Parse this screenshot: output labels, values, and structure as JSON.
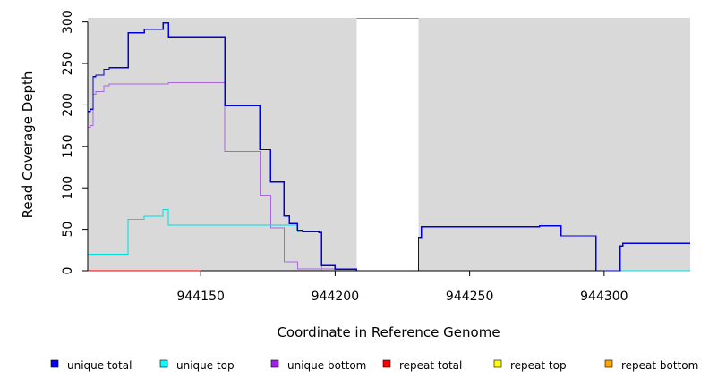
{
  "chart_data": {
    "type": "line",
    "xlabel": "Coordinate in Reference Genome",
    "ylabel": "Read Coverage Depth",
    "xlim": [
      944108,
      944332
    ],
    "ylim": [
      0,
      305
    ],
    "x_ticks": [
      944150,
      944200,
      944250,
      944300
    ],
    "x_tick_labels": [
      "944150",
      "944200",
      "944250",
      "944300"
    ],
    "y_ticks": [
      0,
      50,
      100,
      150,
      200,
      250,
      300
    ],
    "y_tick_labels": [
      "0",
      "50",
      "100",
      "150",
      "200",
      "250",
      "300"
    ],
    "background": "#d9d9d9",
    "gap": [
      944208,
      944231
    ],
    "legend_position": "bottom",
    "series": [
      {
        "name": "unique total",
        "color": "#0000dd",
        "x": [
          944108,
          944109,
          944110,
          944111,
          944114,
          944116,
          944123,
          944129,
          944136,
          944138,
          944159,
          944172,
          944176,
          944181,
          944183,
          944186,
          944188,
          944191,
          944194,
          944195,
          944200,
          944208,
          944231,
          944232,
          944276,
          944284,
          944297,
          944306,
          944307,
          944332
        ],
        "y": [
          192,
          195,
          234,
          236,
          243,
          245,
          287,
          291,
          299,
          282,
          199,
          146,
          107,
          66,
          57,
          49,
          47,
          47,
          46,
          6,
          2,
          0,
          40,
          53,
          54,
          42,
          0,
          30,
          33,
          33
        ]
      },
      {
        "name": "unique top",
        "color": "#00dddd",
        "x": [
          944108,
          944123,
          944129,
          944136,
          944138,
          944159,
          944186,
          944195,
          944208,
          944231,
          944276,
          944332
        ],
        "y": [
          20,
          62,
          66,
          74,
          55,
          55,
          47,
          0,
          0,
          0,
          0,
          0
        ]
      },
      {
        "name": "unique bottom",
        "color": "#aa66dd",
        "x": [
          944108,
          944109,
          944110,
          944111,
          944114,
          944116,
          944138,
          944159,
          944172,
          944176,
          944181,
          944186,
          944208,
          944231,
          944332
        ],
        "y": [
          173,
          175,
          213,
          216,
          223,
          225,
          227,
          144,
          91,
          52,
          11,
          2,
          0,
          0,
          0
        ]
      },
      {
        "name": "repeat total",
        "color": "#ff0000",
        "x": [
          944108,
          944332
        ],
        "y": [
          0,
          0
        ]
      },
      {
        "name": "repeat top",
        "color": "#dddd00",
        "x": [
          944108,
          944332
        ],
        "y": [
          0,
          0
        ]
      },
      {
        "name": "repeat bottom",
        "color": "#ff9900",
        "x": [
          944108,
          944332
        ],
        "y": [
          0,
          0
        ]
      }
    ],
    "legend": [
      {
        "label": "unique total",
        "fill": "#0000ff"
      },
      {
        "label": "unique top",
        "fill": "#00ffff"
      },
      {
        "label": "unique bottom",
        "fill": "#a020f0"
      },
      {
        "label": "repeat total",
        "fill": "#ff0000"
      },
      {
        "label": "repeat top",
        "fill": "#ffff00"
      },
      {
        "label": "repeat bottom",
        "fill": "#ffa500"
      }
    ]
  }
}
